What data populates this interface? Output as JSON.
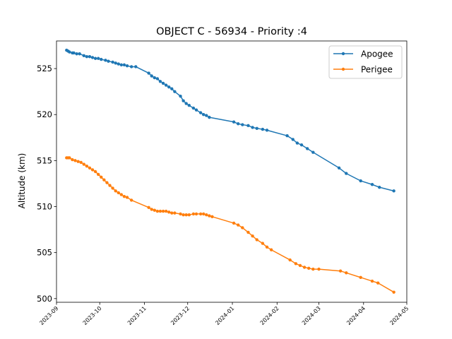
{
  "chart_data": {
    "type": "line",
    "title": "OBJECT C - 56934 - Priority :4",
    "xlabel": "",
    "ylabel": "Altitude (km)",
    "xlim": [
      "2023-09-01",
      "2024-05-01"
    ],
    "ylim": [
      499.6,
      528.0
    ],
    "x_ticks": [
      "2023-09",
      "2023-10",
      "2023-11",
      "2023-12",
      "2024-01",
      "2024-02",
      "2024-03",
      "2024-04",
      "2024-05"
    ],
    "y_ticks": [
      500,
      505,
      510,
      515,
      520,
      525
    ],
    "legend_position": "top-right",
    "grid": false,
    "series": [
      {
        "name": "Apogee",
        "color": "#1f77b4",
        "points": [
          [
            "2023-09-08",
            527.0
          ],
          [
            "2023-09-09",
            526.9
          ],
          [
            "2023-09-10",
            526.8
          ],
          [
            "2023-09-12",
            526.7
          ],
          [
            "2023-09-13",
            526.7
          ],
          [
            "2023-09-15",
            526.6
          ],
          [
            "2023-09-17",
            526.6
          ],
          [
            "2023-09-20",
            526.4
          ],
          [
            "2023-09-22",
            526.3
          ],
          [
            "2023-09-24",
            526.3
          ],
          [
            "2023-09-26",
            526.2
          ],
          [
            "2023-09-28",
            526.1
          ],
          [
            "2023-09-30",
            526.1
          ],
          [
            "2023-10-02",
            526.0
          ],
          [
            "2023-10-05",
            525.9
          ],
          [
            "2023-10-07",
            525.8
          ],
          [
            "2023-10-10",
            525.7
          ],
          [
            "2023-10-12",
            525.6
          ],
          [
            "2023-10-14",
            525.5
          ],
          [
            "2023-10-16",
            525.4
          ],
          [
            "2023-10-18",
            525.4
          ],
          [
            "2023-10-20",
            525.3
          ],
          [
            "2023-10-23",
            525.2
          ],
          [
            "2023-10-26",
            525.2
          ],
          [
            "2023-11-04",
            524.5
          ],
          [
            "2023-11-06",
            524.2
          ],
          [
            "2023-11-08",
            524.0
          ],
          [
            "2023-11-10",
            523.9
          ],
          [
            "2023-11-12",
            523.6
          ],
          [
            "2023-11-14",
            523.4
          ],
          [
            "2023-11-16",
            523.2
          ],
          [
            "2023-11-18",
            523.0
          ],
          [
            "2023-11-20",
            522.8
          ],
          [
            "2023-11-22",
            522.5
          ],
          [
            "2023-11-26",
            522.0
          ],
          [
            "2023-11-28",
            521.5
          ],
          [
            "2023-11-30",
            521.2
          ],
          [
            "2023-12-02",
            521.0
          ],
          [
            "2023-12-05",
            520.7
          ],
          [
            "2023-12-07",
            520.5
          ],
          [
            "2023-12-10",
            520.2
          ],
          [
            "2023-12-12",
            520.0
          ],
          [
            "2023-12-14",
            519.9
          ],
          [
            "2023-12-16",
            519.7
          ],
          [
            "2024-01-02",
            519.2
          ],
          [
            "2024-01-05",
            519.0
          ],
          [
            "2024-01-08",
            518.9
          ],
          [
            "2024-01-12",
            518.8
          ],
          [
            "2024-01-15",
            518.6
          ],
          [
            "2024-01-18",
            518.5
          ],
          [
            "2024-01-22",
            518.4
          ],
          [
            "2024-01-25",
            518.3
          ],
          [
            "2024-02-08",
            517.7
          ],
          [
            "2024-02-12",
            517.3
          ],
          [
            "2024-02-15",
            516.9
          ],
          [
            "2024-02-18",
            516.7
          ],
          [
            "2024-02-22",
            516.3
          ],
          [
            "2024-02-26",
            515.9
          ],
          [
            "2024-03-15",
            514.2
          ],
          [
            "2024-03-20",
            513.6
          ],
          [
            "2024-03-30",
            512.8
          ],
          [
            "2024-04-07",
            512.4
          ],
          [
            "2024-04-12",
            512.1
          ],
          [
            "2024-04-22",
            511.7
          ]
        ]
      },
      {
        "name": "Perigee",
        "color": "#ff7f0e",
        "points": [
          [
            "2023-09-08",
            515.3
          ],
          [
            "2023-09-09",
            515.3
          ],
          [
            "2023-09-10",
            515.3
          ],
          [
            "2023-09-12",
            515.1
          ],
          [
            "2023-09-14",
            515.0
          ],
          [
            "2023-09-16",
            514.9
          ],
          [
            "2023-09-18",
            514.8
          ],
          [
            "2023-09-20",
            514.6
          ],
          [
            "2023-09-22",
            514.4
          ],
          [
            "2023-09-24",
            514.2
          ],
          [
            "2023-09-26",
            514.0
          ],
          [
            "2023-09-28",
            513.8
          ],
          [
            "2023-09-30",
            513.5
          ],
          [
            "2023-10-02",
            513.2
          ],
          [
            "2023-10-04",
            512.9
          ],
          [
            "2023-10-06",
            512.6
          ],
          [
            "2023-10-08",
            512.3
          ],
          [
            "2023-10-10",
            512.0
          ],
          [
            "2023-10-12",
            511.7
          ],
          [
            "2023-10-14",
            511.5
          ],
          [
            "2023-10-16",
            511.3
          ],
          [
            "2023-10-18",
            511.1
          ],
          [
            "2023-10-20",
            511.0
          ],
          [
            "2023-10-23",
            510.7
          ],
          [
            "2023-11-04",
            509.9
          ],
          [
            "2023-11-06",
            509.7
          ],
          [
            "2023-11-08",
            509.6
          ],
          [
            "2023-11-10",
            509.5
          ],
          [
            "2023-11-12",
            509.5
          ],
          [
            "2023-11-14",
            509.5
          ],
          [
            "2023-11-16",
            509.5
          ],
          [
            "2023-11-18",
            509.4
          ],
          [
            "2023-11-20",
            509.3
          ],
          [
            "2023-11-22",
            509.3
          ],
          [
            "2023-11-26",
            509.2
          ],
          [
            "2023-11-28",
            509.1
          ],
          [
            "2023-11-30",
            509.1
          ],
          [
            "2023-12-02",
            509.1
          ],
          [
            "2023-12-05",
            509.2
          ],
          [
            "2023-12-07",
            509.2
          ],
          [
            "2023-12-10",
            509.2
          ],
          [
            "2023-12-12",
            509.2
          ],
          [
            "2023-12-14",
            509.1
          ],
          [
            "2023-12-16",
            509.0
          ],
          [
            "2023-12-18",
            508.9
          ],
          [
            "2024-01-02",
            508.2
          ],
          [
            "2024-01-05",
            508.0
          ],
          [
            "2024-01-08",
            507.7
          ],
          [
            "2024-01-12",
            507.2
          ],
          [
            "2024-01-15",
            506.8
          ],
          [
            "2024-01-18",
            506.4
          ],
          [
            "2024-01-22",
            506.0
          ],
          [
            "2024-01-25",
            505.6
          ],
          [
            "2024-01-28",
            505.3
          ],
          [
            "2024-02-10",
            504.2
          ],
          [
            "2024-02-14",
            503.8
          ],
          [
            "2024-02-17",
            503.6
          ],
          [
            "2024-02-20",
            503.4
          ],
          [
            "2024-02-23",
            503.3
          ],
          [
            "2024-02-26",
            503.2
          ],
          [
            "2024-03-01",
            503.2
          ],
          [
            "2024-03-16",
            503.0
          ],
          [
            "2024-03-20",
            502.8
          ],
          [
            "2024-03-30",
            502.3
          ],
          [
            "2024-04-07",
            501.9
          ],
          [
            "2024-04-11",
            501.7
          ],
          [
            "2024-04-22",
            500.7
          ]
        ]
      }
    ]
  }
}
